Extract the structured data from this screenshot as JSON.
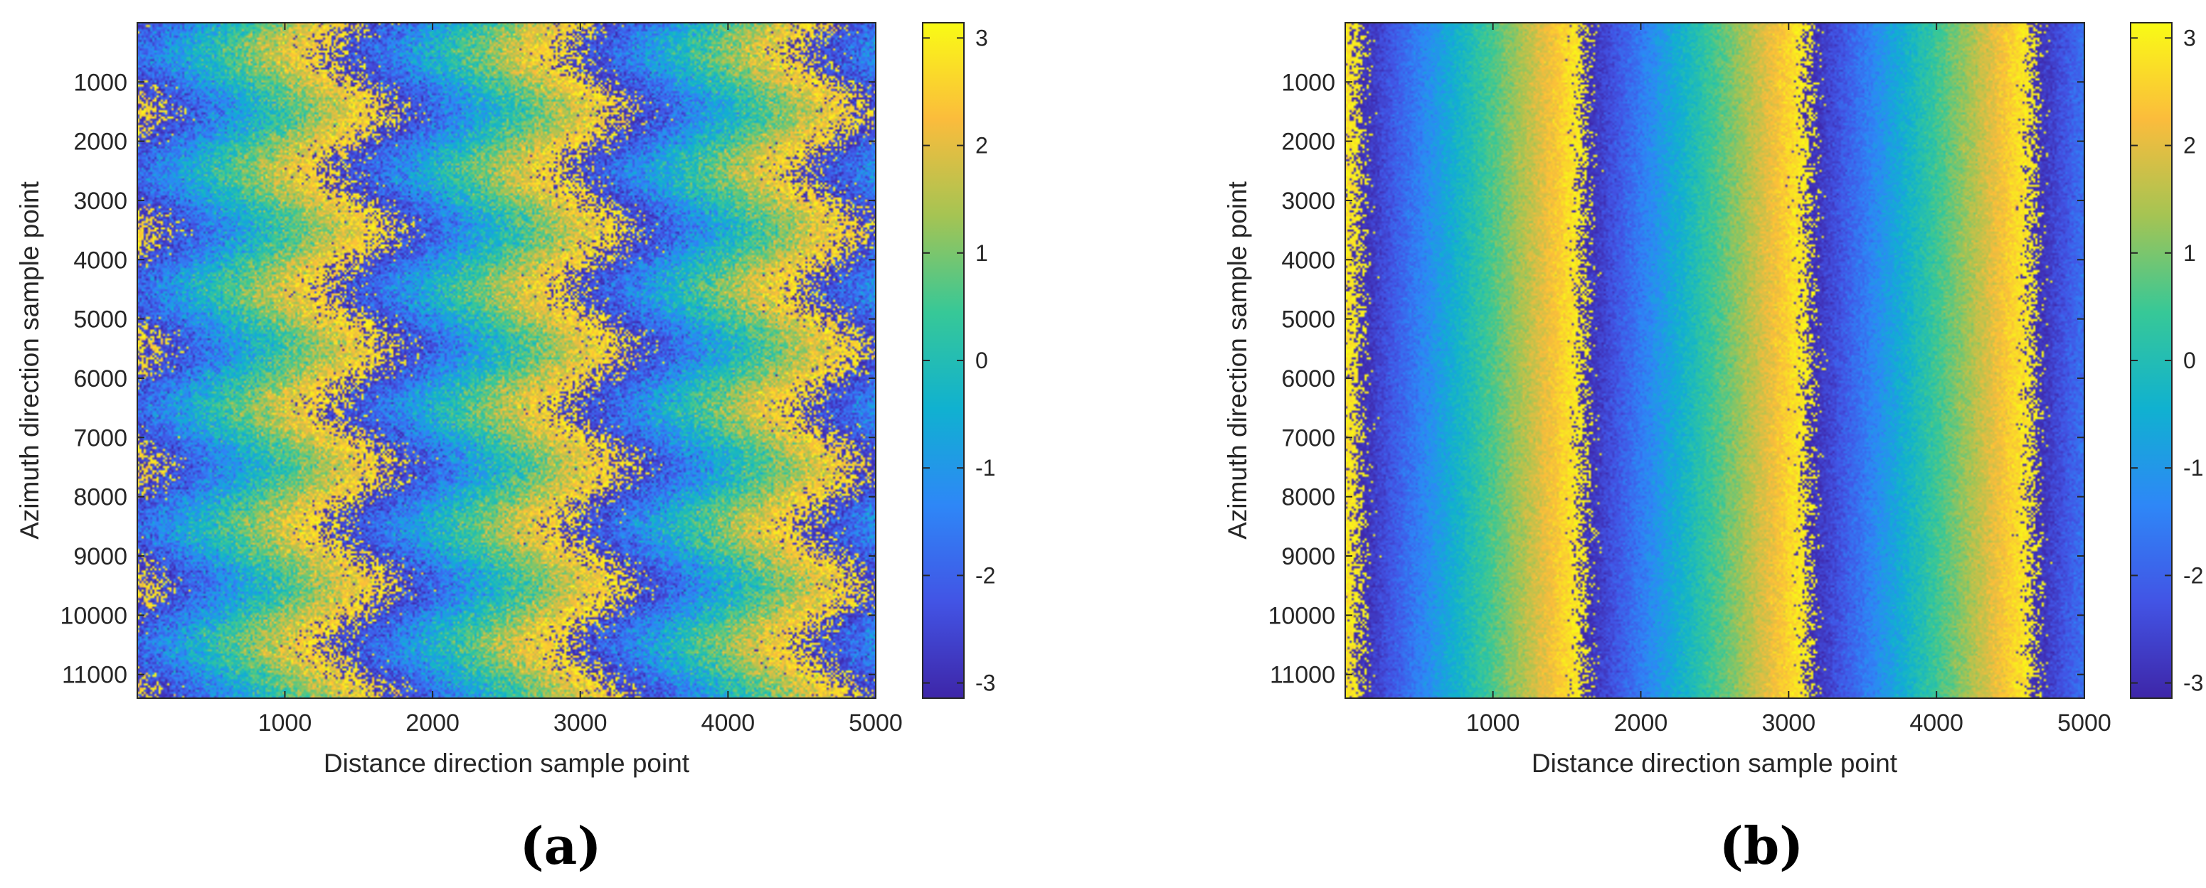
{
  "chart_data": [
    {
      "type": "heatmap",
      "panel_label": "(a)",
      "xlabel": "Distance direction sample point",
      "ylabel": "Azimuth direction sample point",
      "xlim": [
        1,
        5000
      ],
      "ylim": [
        1,
        11400
      ],
      "y_direction": "reverse",
      "xticks": [
        1000,
        2000,
        3000,
        4000,
        5000
      ],
      "xtick_labels": [
        "1000",
        "2000",
        "3000",
        "4000",
        "5000"
      ],
      "yticks": [
        1000,
        2000,
        3000,
        4000,
        5000,
        6000,
        7000,
        8000,
        9000,
        10000,
        11000
      ],
      "ytick_labels": [
        "1000",
        "2000",
        "3000",
        "4000",
        "5000",
        "6000",
        "7000",
        "8000",
        "9000",
        "10000",
        "11000"
      ],
      "colorbar": {
        "colormap": "parula",
        "clim": [
          -3.1416,
          3.1416
        ],
        "ticks": [
          3,
          2,
          1,
          0,
          -1,
          -2,
          -3
        ],
        "tick_labels": [
          "3",
          "2",
          "1",
          "0",
          "-1",
          "-2",
          "-3"
        ]
      },
      "pattern": {
        "description": "wrapped phase, sinusoidally wavy vertical fringes",
        "fringe_period_x": 1600,
        "phase_offset_x": 700,
        "wave_amplitude_x": 200,
        "wave_period_y": 2000,
        "wave_phase_y": 1000,
        "noise_level": 0.55
      }
    },
    {
      "type": "heatmap",
      "panel_label": "(b)",
      "xlabel": "Distance direction sample point",
      "ylabel": "Azimuth direction sample point",
      "xlim": [
        1,
        5000
      ],
      "ylim": [
        1,
        11400
      ],
      "y_direction": "reverse",
      "xticks": [
        1000,
        2000,
        3000,
        4000,
        5000
      ],
      "xtick_labels": [
        "1000",
        "2000",
        "3000",
        "4000",
        "5000"
      ],
      "yticks": [
        1000,
        2000,
        3000,
        4000,
        5000,
        6000,
        7000,
        8000,
        9000,
        10000,
        11000
      ],
      "ytick_labels": [
        "1000",
        "2000",
        "3000",
        "4000",
        "5000",
        "6000",
        "7000",
        "8000",
        "9000",
        "10000",
        "11000"
      ],
      "colorbar": {
        "colormap": "parula",
        "clim": [
          -3.1416,
          3.1416
        ],
        "ticks": [
          3,
          2,
          1,
          0,
          -1,
          -2,
          -3
        ],
        "tick_labels": [
          "3",
          "2",
          "1",
          "0",
          "-1",
          "-2",
          "-3"
        ]
      },
      "pattern": {
        "description": "wrapped phase, straight vertical fringes",
        "fringe_period_x": 1520,
        "phase_offset_x": 850,
        "wave_amplitude_x": 0,
        "wave_period_y": 2000,
        "wave_phase_y": 0,
        "noise_level": 0.22
      }
    }
  ],
  "colors": {
    "axis": "#262626",
    "parula_stops": [
      "#3E26A8",
      "#4254E5",
      "#2E87F7",
      "#10B1D0",
      "#37C897",
      "#A5C453",
      "#FBBC3C",
      "#F9FB15"
    ]
  }
}
